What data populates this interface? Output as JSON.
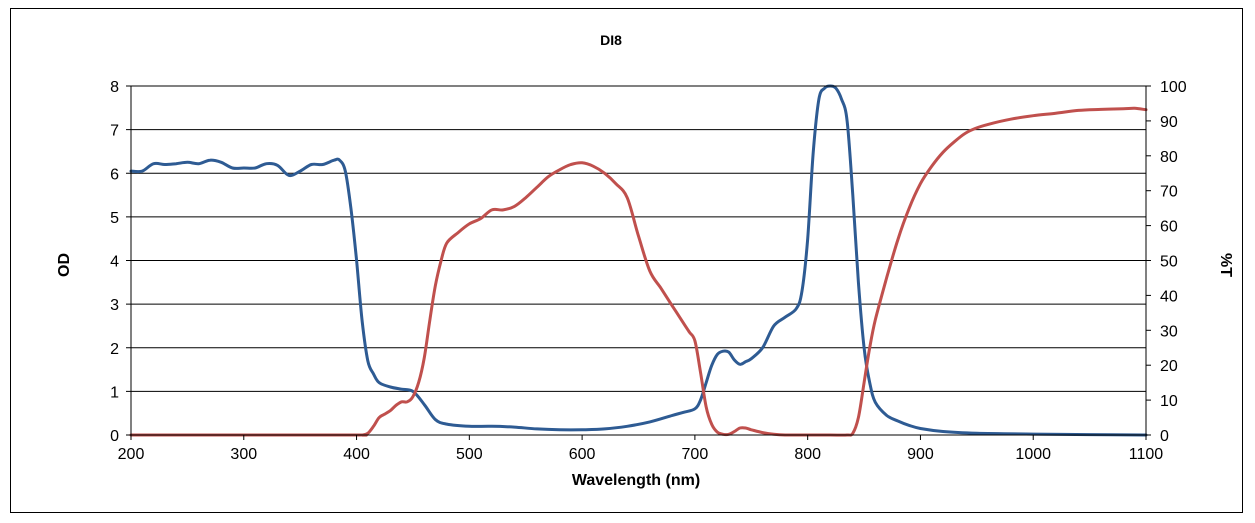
{
  "chart_data": {
    "type": "line",
    "title": "DI8",
    "xlabel": "Wavelength (nm)",
    "ylabel": "OD",
    "y2label": "%T",
    "xlim": [
      200,
      1100
    ],
    "ylim": [
      0,
      8
    ],
    "y2lim": [
      0,
      100
    ],
    "xticks": [
      "200",
      "300",
      "400",
      "500",
      "600",
      "700",
      "800",
      "900",
      "1000",
      "1100"
    ],
    "yticks": [
      "0",
      "1",
      "2",
      "3",
      "4",
      "5",
      "6",
      "7",
      "8"
    ],
    "y2ticks": [
      "0",
      "10",
      "20",
      "30",
      "40",
      "50",
      "60",
      "70",
      "80",
      "90",
      "100"
    ],
    "grid": "horizontal",
    "legend": "none",
    "series": [
      {
        "axis": "left",
        "color": "#2e5b93",
        "x": [
          200,
          210,
          220,
          230,
          240,
          250,
          260,
          270,
          280,
          290,
          300,
          310,
          320,
          330,
          340,
          350,
          360,
          370,
          380,
          385,
          390,
          395,
          400,
          405,
          410,
          415,
          420,
          430,
          440,
          450,
          460,
          470,
          480,
          500,
          520,
          540,
          560,
          580,
          600,
          620,
          640,
          660,
          680,
          690,
          700,
          705,
          710,
          715,
          720,
          725,
          730,
          735,
          740,
          745,
          750,
          760,
          770,
          780,
          790,
          795,
          800,
          805,
          810,
          815,
          820,
          825,
          830,
          835,
          840,
          845,
          850,
          855,
          860,
          870,
          880,
          890,
          900,
          920,
          950,
          1000,
          1050,
          1100
        ],
        "values": [
          6.05,
          6.05,
          6.22,
          6.2,
          6.22,
          6.25,
          6.22,
          6.3,
          6.25,
          6.12,
          6.12,
          6.12,
          6.22,
          6.18,
          5.95,
          6.05,
          6.2,
          6.2,
          6.3,
          6.3,
          6.05,
          5.2,
          4.0,
          2.6,
          1.7,
          1.4,
          1.2,
          1.1,
          1.05,
          1.0,
          0.7,
          0.35,
          0.25,
          0.2,
          0.2,
          0.18,
          0.14,
          0.12,
          0.12,
          0.14,
          0.2,
          0.3,
          0.45,
          0.52,
          0.6,
          0.8,
          1.2,
          1.6,
          1.85,
          1.92,
          1.9,
          1.72,
          1.62,
          1.68,
          1.75,
          2.0,
          2.5,
          2.7,
          2.9,
          3.3,
          4.5,
          6.5,
          7.7,
          7.95,
          8.0,
          7.95,
          7.7,
          7.2,
          5.5,
          3.5,
          2.0,
          1.2,
          0.75,
          0.45,
          0.32,
          0.22,
          0.15,
          0.08,
          0.04,
          0.02,
          0.01,
          0.0
        ]
      },
      {
        "axis": "right",
        "color": "#c0504d",
        "x": [
          200,
          300,
          400,
          405,
          410,
          415,
          420,
          425,
          430,
          435,
          440,
          445,
          450,
          455,
          460,
          465,
          470,
          475,
          480,
          490,
          500,
          510,
          520,
          530,
          540,
          550,
          560,
          570,
          580,
          590,
          600,
          610,
          620,
          630,
          640,
          650,
          660,
          670,
          680,
          690,
          695,
          700,
          705,
          710,
          715,
          720,
          725,
          730,
          735,
          740,
          745,
          750,
          760,
          770,
          780,
          800,
          820,
          835,
          840,
          845,
          850,
          855,
          860,
          870,
          880,
          890,
          900,
          910,
          920,
          930,
          940,
          950,
          960,
          980,
          1000,
          1020,
          1040,
          1060,
          1080,
          1090,
          1100
        ],
        "values": [
          0,
          0,
          0,
          0,
          0.5,
          2.5,
          5,
          6,
          7,
          8.5,
          9.5,
          9.5,
          11,
          15,
          22,
          33,
          43,
          50,
          55,
          58,
          60.5,
          62,
          64.5,
          64.5,
          65.5,
          68,
          71,
          74,
          76,
          77.5,
          78,
          77,
          75,
          72,
          68,
          57,
          47,
          42,
          37,
          32,
          29.5,
          27,
          18,
          8,
          3,
          0.8,
          0.2,
          0.2,
          1.0,
          2.0,
          2.0,
          1.5,
          0.7,
          0.2,
          0,
          0,
          0,
          0,
          0.5,
          5,
          15,
          25,
          33,
          45,
          56,
          65,
          72,
          77,
          81,
          84,
          86.5,
          88,
          89,
          90.5,
          91.5,
          92.2,
          93,
          93.3,
          93.5,
          93.6,
          93.2
        ]
      }
    ]
  }
}
